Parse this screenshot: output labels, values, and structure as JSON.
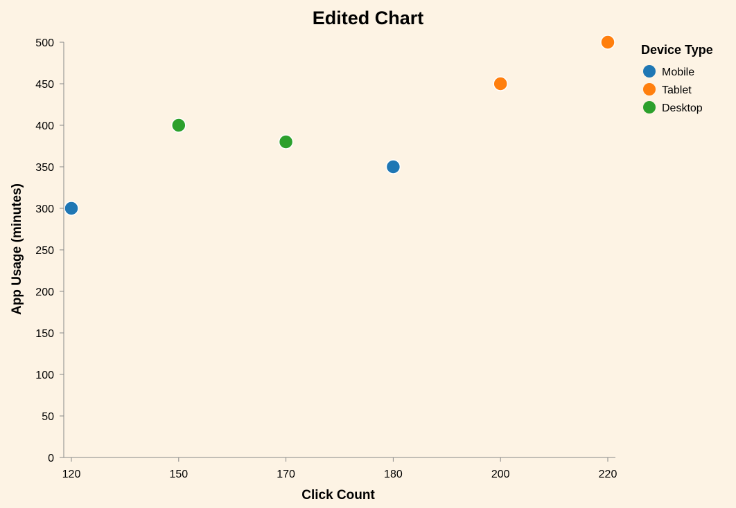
{
  "colors": {
    "background": "#fdf3e4",
    "axis": "#888888"
  },
  "chart_data": {
    "type": "scatter",
    "title": "Edited Chart",
    "xlabel": "Click Count",
    "ylabel": "App Usage (minutes)",
    "x_axis_kind": "ordinal",
    "x_categories": [
      "120",
      "150",
      "170",
      "180",
      "200",
      "220"
    ],
    "y_ticks": [
      0,
      50,
      100,
      150,
      200,
      250,
      300,
      350,
      400,
      450,
      500
    ],
    "ylim": [
      0,
      500
    ],
    "grid": false,
    "legend": {
      "title": "Device Type",
      "placement": "right",
      "entries": [
        {
          "name": "Mobile",
          "color": "#1f77b4"
        },
        {
          "name": "Tablet",
          "color": "#ff7f0e"
        },
        {
          "name": "Desktop",
          "color": "#2ca02c"
        }
      ]
    },
    "points": [
      {
        "x": "120",
        "y": 300,
        "series": "Mobile"
      },
      {
        "x": "150",
        "y": 400,
        "series": "Desktop"
      },
      {
        "x": "170",
        "y": 380,
        "series": "Desktop"
      },
      {
        "x": "180",
        "y": 350,
        "series": "Mobile"
      },
      {
        "x": "200",
        "y": 450,
        "series": "Tablet"
      },
      {
        "x": "220",
        "y": 500,
        "series": "Tablet"
      }
    ]
  }
}
